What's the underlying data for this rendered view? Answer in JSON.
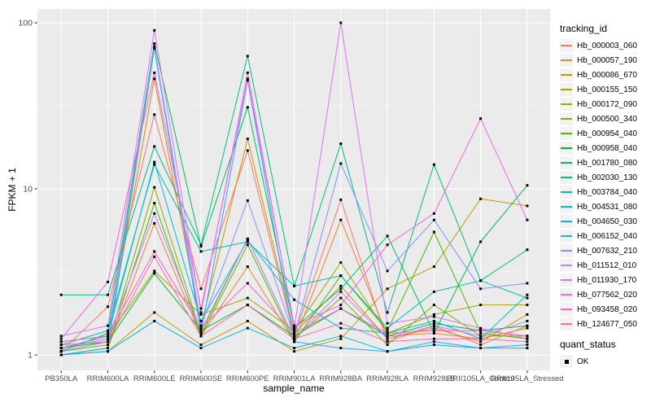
{
  "figure": {
    "background": "#FFFFFF",
    "panel_background": "#EBEBEB",
    "grid_color": "#FFFFFF",
    "tick_color": "#333333",
    "tick_label_color": "#4D4D4D",
    "axis_title_color": "#000000",
    "point_color": "#000000"
  },
  "chart_data": {
    "type": "line",
    "title": "",
    "xlabel": "sample_name",
    "ylabel": "FPKM + 1",
    "y_scale": "log10",
    "y_ticks": [
      "1",
      "10",
      "100"
    ],
    "y_tick_values": [
      1,
      10,
      100
    ],
    "y_minor_values": [
      3.1623,
      31.623
    ],
    "ylim": [
      0.85,
      120
    ],
    "grid": true,
    "legend_position": "right",
    "point_shape": "filled-square",
    "categories": [
      "PB350LA",
      "RRIM600LA",
      "RRIM600LE",
      "RRIM600SE",
      "RRIM600PE",
      "RRIM901LA",
      "RRIM928BA",
      "RRIM928LA",
      "RRIM928LB",
      "RRII105LA_Control",
      "RRII105LA_Stressed"
    ],
    "legend": {
      "title": "tracking_id"
    },
    "quant_legend": {
      "title": "quant_status",
      "items": [
        {
          "label": "OK",
          "shape": "filled-square",
          "color": "#000000"
        }
      ]
    },
    "series": [
      {
        "name": "Hb_000003_060",
        "color": "#F8766D",
        "values": [
          1.05,
          1.95,
          28,
          2.5,
          17,
          1.3,
          8.6,
          1.2,
          1.5,
          1.15,
          1.5
        ]
      },
      {
        "name": "Hb_000057_190",
        "color": "#EA8331",
        "values": [
          1.0,
          1.1,
          6.2,
          1.3,
          3.4,
          1.2,
          6.5,
          1.3,
          1.35,
          1.25,
          1.45
        ]
      },
      {
        "name": "Hb_000086_670",
        "color": "#D89000",
        "values": [
          1.1,
          1.25,
          46,
          1.5,
          20,
          1.35,
          2.6,
          1.25,
          1.45,
          1.2,
          1.75
        ]
      },
      {
        "name": "Hb_000155_150",
        "color": "#C39B00",
        "values": [
          1.0,
          1.05,
          1.8,
          1.15,
          1.6,
          1.05,
          1.25,
          2.5,
          3.4,
          8.7,
          7.9
        ]
      },
      {
        "name": "Hb_000172_090",
        "color": "#A8A400",
        "values": [
          1.2,
          1.3,
          3.2,
          1.75,
          2.2,
          1.4,
          3.6,
          1.35,
          1.75,
          2.0,
          2.0
        ]
      },
      {
        "name": "Hb_000500_340",
        "color": "#86AC00",
        "values": [
          1.05,
          1.15,
          10.2,
          1.35,
          5.0,
          1.25,
          2.2,
          1.15,
          2.0,
          1.3,
          1.3
        ]
      },
      {
        "name": "Hb_000954_040",
        "color": "#51B600",
        "values": [
          1.0,
          1.1,
          8.2,
          1.3,
          4.6,
          1.2,
          3.0,
          1.4,
          5.5,
          1.35,
          1.25
        ]
      },
      {
        "name": "Hb_000958_040",
        "color": "#00B92A",
        "values": [
          1.1,
          1.2,
          3.1,
          1.4,
          2.0,
          1.3,
          1.9,
          1.3,
          1.55,
          1.4,
          1.5
        ]
      },
      {
        "name": "Hb_001780_080",
        "color": "#00BC59",
        "values": [
          1.05,
          1.35,
          75,
          4.5,
          31,
          1.45,
          2.5,
          5.2,
          1.35,
          4.8,
          10.5
        ]
      },
      {
        "name": "Hb_002030_130",
        "color": "#00BE85",
        "values": [
          2.3,
          2.3,
          18,
          4.6,
          63,
          2.6,
          18.7,
          1.8,
          14,
          2.8,
          4.3
        ]
      },
      {
        "name": "Hb_003784_040",
        "color": "#00C0AF",
        "values": [
          1.15,
          1.4,
          14,
          4.2,
          4.8,
          2.6,
          3.0,
          1.45,
          2.4,
          2.8,
          2.2
        ]
      },
      {
        "name": "Hb_004531_080",
        "color": "#00BDD4",
        "values": [
          1.1,
          1.3,
          14.5,
          1.6,
          4.9,
          2.15,
          1.45,
          1.35,
          1.6,
          1.25,
          2.3
        ]
      },
      {
        "name": "Hb_004650_030",
        "color": "#00B6ED",
        "values": [
          1.0,
          1.05,
          1.6,
          1.1,
          1.45,
          1.1,
          1.3,
          1.05,
          1.15,
          1.1,
          1.1
        ]
      },
      {
        "name": "Hb_006152_040",
        "color": "#27A8FF",
        "values": [
          1.0,
          1.1,
          70,
          1.35,
          45,
          1.2,
          1.1,
          1.05,
          1.2,
          1.1,
          1.15
        ]
      },
      {
        "name": "Hb_007632_210",
        "color": "#8293FF",
        "values": [
          1.05,
          1.2,
          72,
          1.5,
          8.5,
          1.3,
          14.2,
          3.2,
          6.5,
          2.5,
          2.7
        ]
      },
      {
        "name": "Hb_011512_010",
        "color": "#B983FF",
        "values": [
          1.1,
          1.25,
          7.1,
          1.4,
          5.0,
          1.25,
          2.4,
          1.25,
          1.5,
          1.3,
          1.6
        ]
      },
      {
        "name": "Hb_011930_170",
        "color": "#DB72FB",
        "values": [
          1.3,
          1.5,
          90,
          1.8,
          50,
          1.45,
          100,
          1.55,
          1.7,
          1.45,
          1.25
        ]
      },
      {
        "name": "Hb_077562_020",
        "color": "#F165E6",
        "values": [
          1.25,
          2.75,
          50,
          1.9,
          46,
          1.5,
          2.0,
          4.6,
          7.1,
          26.5,
          6.5
        ]
      },
      {
        "name": "Hb_093458_020",
        "color": "#FD61D0",
        "values": [
          1.2,
          1.3,
          4.2,
          1.45,
          2.7,
          1.35,
          1.9,
          1.35,
          1.4,
          1.4,
          1.3
        ]
      },
      {
        "name": "Hb_124677_050",
        "color": "#FF68AF",
        "values": [
          1.15,
          1.2,
          3.9,
          1.3,
          2.0,
          1.25,
          1.55,
          1.2,
          1.25,
          1.25,
          1.2
        ]
      }
    ]
  }
}
